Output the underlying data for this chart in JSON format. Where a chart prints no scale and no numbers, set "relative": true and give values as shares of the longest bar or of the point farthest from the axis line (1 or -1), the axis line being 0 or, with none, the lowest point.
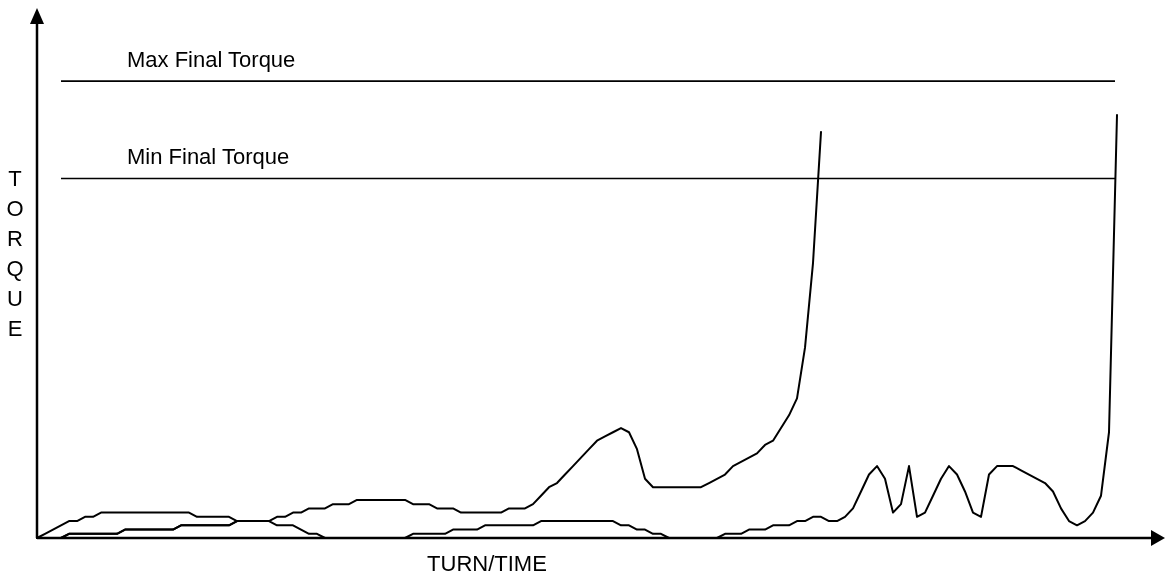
{
  "chart_data": {
    "type": "line",
    "relative": true,
    "xlabel": "TURN/TIME",
    "ylabel": "TORQUE",
    "categories": [
      null,
      null,
      null,
      null,
      null,
      null,
      null,
      null,
      null,
      null,
      null,
      null,
      null,
      null,
      null,
      null,
      null,
      null,
      null,
      null,
      null,
      null,
      null,
      null,
      null,
      null,
      null,
      null,
      null,
      null,
      null,
      null,
      null,
      null,
      null,
      null,
      null,
      null,
      null,
      null,
      null,
      null,
      null,
      null,
      null,
      null,
      null,
      null,
      null,
      null,
      null,
      null,
      null,
      null,
      null,
      null,
      null,
      null,
      null,
      null,
      null,
      null,
      null,
      null,
      null,
      null,
      null,
      null,
      null,
      null,
      null,
      null,
      null,
      null,
      null,
      null,
      null,
      null,
      null,
      null,
      null,
      null,
      null,
      null,
      null,
      null,
      null,
      null,
      null,
      null,
      null,
      null,
      null,
      null,
      null,
      null,
      null,
      null,
      null,
      null,
      null,
      null,
      null,
      null,
      null,
      null,
      null,
      null,
      null,
      null,
      null,
      null,
      null,
      null,
      null,
      null,
      null,
      null,
      null,
      null,
      null,
      null,
      null,
      null,
      null,
      null,
      null,
      null,
      null,
      null,
      null,
      null,
      null,
      null,
      null,
      null
    ],
    "ref_lines": [
      {
        "axis": "y",
        "value": 1.08,
        "label": "Max Final Torque",
        "color": "#000000"
      },
      {
        "axis": "y",
        "value": 0.85,
        "label": "Min Final Torque",
        "color": "#000000"
      }
    ],
    "series": [
      {
        "color": "#000000",
        "values": [
          0,
          0,
          0,
          0,
          0.01,
          0.01,
          0.01,
          0.01,
          0.01,
          0.01,
          0.01,
          0.02,
          0.02,
          0.02,
          0.02,
          0.02,
          0.02,
          0.02,
          0.03,
          0.03,
          0.03,
          0.03,
          0.03,
          0.03,
          0.03,
          0.04,
          0.04,
          0.04,
          0.04,
          0.04,
          0.03,
          0.03,
          0.03,
          0.02,
          0.01,
          0.01,
          0,
          0,
          0,
          0,
          0,
          0,
          0,
          0,
          0,
          0,
          0,
          0.01,
          0.01,
          0.01,
          0.01,
          0.01,
          0.02,
          0.02,
          0.02,
          0.02,
          0.03,
          0.03,
          0.03,
          0.03,
          0.03,
          0.03,
          0.03,
          0.04,
          0.04,
          0.04,
          0.04,
          0.04,
          0.04,
          0.04,
          0.04,
          0.04,
          0.04,
          0.03,
          0.03,
          0.02,
          0.02,
          0.01,
          0.01,
          0,
          0,
          0,
          0,
          0,
          0,
          0,
          0.01,
          0.01,
          0.01,
          0.02,
          0.02,
          0.02,
          0.03,
          0.03,
          0.03,
          0.04,
          0.04,
          0.05,
          0.05,
          0.04,
          0.04,
          0.05,
          0.07,
          0.11,
          0.15,
          0.17,
          0.14,
          0.06,
          0.08,
          0.17,
          0.05,
          0.06,
          0.1,
          0.14,
          0.17,
          0.15,
          0.11,
          0.06,
          0.05,
          0.15,
          0.17,
          0.17,
          0.17,
          0.16,
          0.15,
          0.14,
          0.13,
          0.11,
          0.07,
          0.04,
          0.03,
          0.04,
          0.06,
          0.1,
          0.25,
          1
        ]
      },
      {
        "color": "#000000",
        "values": [
          0,
          0,
          0,
          0,
          0.01,
          0.01,
          0.01,
          0.01,
          0.01,
          0.01,
          0.01,
          0.02,
          0.02,
          0.02,
          0.02,
          0.02,
          0.02,
          0.02,
          0.03,
          0.03,
          0.03,
          0.03,
          0.03,
          0.03,
          0.03,
          0.04,
          0.04,
          0.04,
          0.04,
          0.04,
          0.05,
          0.05,
          0.06,
          0.06,
          0.07,
          0.07,
          0.07,
          0.08,
          0.08,
          0.08,
          0.09,
          0.09,
          0.09,
          0.09,
          0.09,
          0.09,
          0.09,
          0.08,
          0.08,
          0.08,
          0.07,
          0.07,
          0.07,
          0.06,
          0.06,
          0.06,
          0.06,
          0.06,
          0.06,
          0.07,
          0.07,
          0.07,
          0.08,
          0.1,
          0.12,
          0.13,
          0.15,
          0.17,
          0.19,
          0.21,
          0.23,
          0.24,
          0.25,
          0.26,
          0.25,
          0.21,
          0.14,
          0.12,
          0.12,
          0.12,
          0.12,
          0.12,
          0.12,
          0.12,
          0.13,
          0.14,
          0.15,
          0.17,
          0.18,
          0.19,
          0.2,
          0.22,
          0.23,
          0.26,
          0.29,
          0.33,
          0.45,
          0.65,
          0.96,
          null,
          null,
          null,
          null,
          null,
          null,
          null,
          null,
          null,
          null,
          null,
          null,
          null,
          null,
          null,
          null,
          null,
          null,
          null,
          null,
          null,
          null,
          null,
          null,
          null,
          null,
          null,
          null,
          null,
          null,
          null,
          null,
          null,
          null,
          null,
          null,
          null
        ]
      },
      {
        "color": "#000000",
        "values": [
          0,
          0.01,
          0.02,
          0.03,
          0.04,
          0.04,
          0.05,
          0.05,
          0.06,
          0.06,
          0.06,
          0.06,
          0.06,
          0.06,
          0.06,
          0.06,
          0.06,
          0.06,
          0.06,
          0.06,
          0.05,
          0.05,
          0.05,
          0.05,
          0.05,
          0.04,
          0.04,
          0.04,
          0.04,
          null,
          null,
          null,
          null,
          null,
          null,
          null,
          null,
          null,
          null,
          null,
          null,
          null,
          null,
          null,
          null,
          null,
          null,
          null,
          null,
          null,
          null,
          null,
          null,
          null,
          null,
          null,
          null,
          null,
          null,
          null,
          null,
          null,
          null,
          null,
          null,
          null,
          null,
          null,
          null,
          null,
          null,
          null,
          null,
          null,
          null,
          null,
          null,
          null,
          null,
          null,
          null,
          null,
          null,
          null,
          null,
          null,
          null,
          null,
          null,
          null,
          null,
          null,
          null,
          null,
          null,
          null,
          null,
          null,
          null,
          null,
          null,
          null,
          null,
          null,
          null,
          null,
          null,
          null,
          null,
          null,
          null,
          null,
          null,
          null,
          null,
          null,
          null,
          null,
          null,
          null,
          null,
          null,
          null,
          null,
          null,
          null,
          null,
          null,
          null,
          null,
          null,
          null,
          null,
          null,
          null,
          null
        ]
      }
    ]
  }
}
